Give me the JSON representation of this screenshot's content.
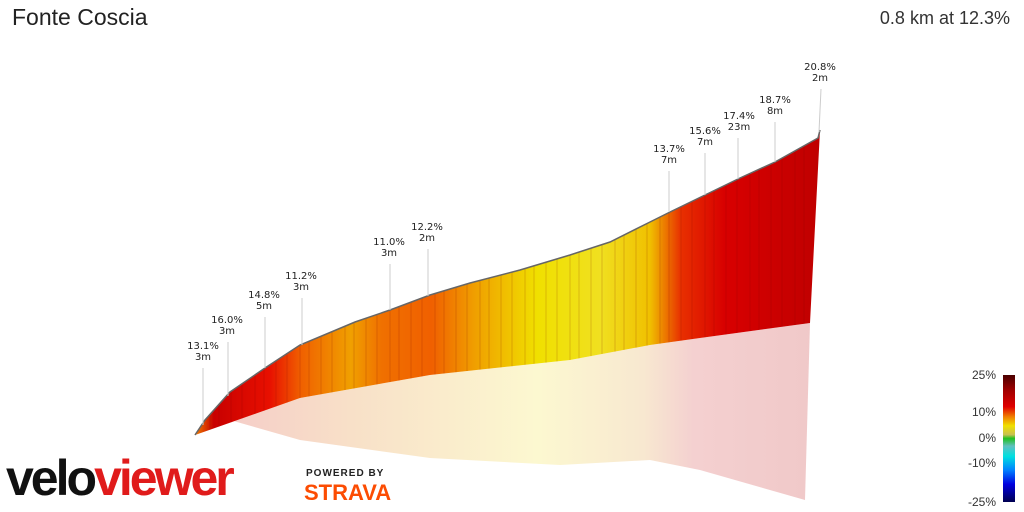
{
  "header": {
    "title": "Fonte Coscia",
    "summary": "0.8 km at 12.3%"
  },
  "segment_labels": [
    {
      "grade": "13.1%",
      "length": "3m"
    },
    {
      "grade": "16.0%",
      "length": "3m"
    },
    {
      "grade": "14.8%",
      "length": "5m"
    },
    {
      "grade": "11.2%",
      "length": "3m"
    },
    {
      "grade": "11.0%",
      "length": "3m"
    },
    {
      "grade": "12.2%",
      "length": "2m"
    },
    {
      "grade": "13.7%",
      "length": "7m"
    },
    {
      "grade": "15.6%",
      "length": "7m"
    },
    {
      "grade": "17.4%",
      "length": "23m"
    },
    {
      "grade": "18.7%",
      "length": "8m"
    },
    {
      "grade": "20.8%",
      "length": "2m"
    }
  ],
  "legend": {
    "ticks": [
      "25%",
      "10%",
      "0%",
      "-10%",
      "-25%"
    ]
  },
  "branding": {
    "logo_velo": "velo",
    "logo_viewer": "viewer",
    "powered_by": "POWERED BY",
    "strava": "STRAVA"
  },
  "colors": {
    "logo_red": "#e01b1b",
    "strava_orange": "#fc4c02",
    "steep": "#d40000",
    "moderate": "#f0e000"
  }
}
